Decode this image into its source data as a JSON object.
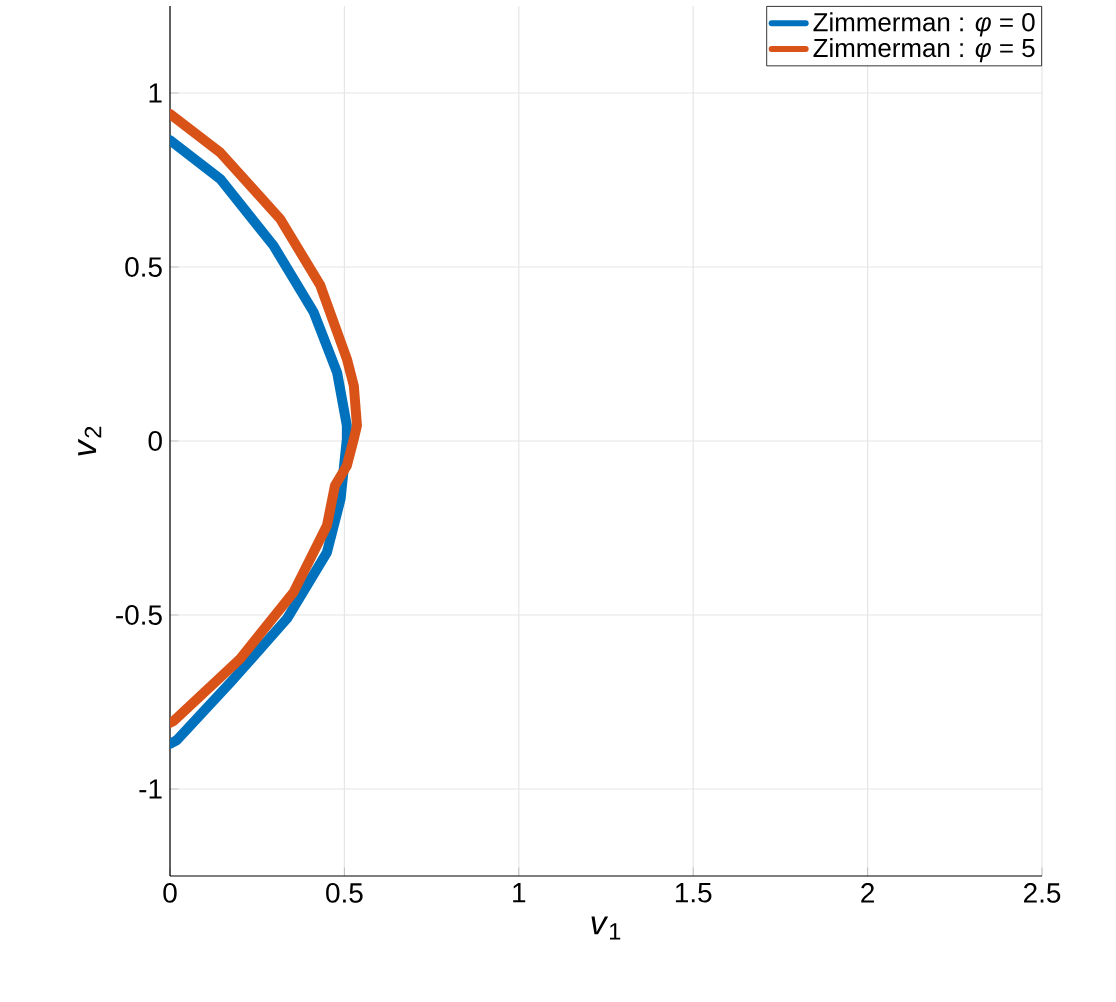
{
  "chart_data": {
    "type": "line",
    "xlabel": "*v*$_{1}$",
    "ylabel": "*v*$_{2}$",
    "xlim": [
      0,
      2.5
    ],
    "ylim": [
      -1.25,
      1.25
    ],
    "xticks": [
      0,
      0.5,
      1,
      1.5,
      2,
      2.5
    ],
    "yticks": [
      -1,
      -0.5,
      0,
      0.5,
      1
    ],
    "grid": true,
    "legend": "top right",
    "series": [
      {
        "name": "Zimmerman : *φ* = 0",
        "color": "#0072bd",
        "x": [
          0,
          0.144,
          0.297,
          0.412,
          0.479,
          0.507,
          0.507,
          0.489,
          0.45,
          0.335,
          0.182,
          0.019,
          0
        ],
        "values": [
          0.864,
          0.753,
          0.561,
          0.37,
          0.197,
          0.044,
          0.006,
          -0.167,
          -0.32,
          -0.511,
          -0.684,
          -0.86,
          -0.87
        ]
      },
      {
        "name": "Zimmerman : *φ* = 5",
        "color": "#d95319",
        "x": [
          0,
          0.144,
          0.316,
          0.431,
          0.507,
          0.527,
          0.536,
          0.527,
          0.507,
          0.473,
          0.45,
          0.354,
          0.201,
          0.01,
          0
        ],
        "values": [
          0.94,
          0.829,
          0.638,
          0.447,
          0.236,
          0.159,
          0.044,
          0.006,
          -0.071,
          -0.128,
          -0.243,
          -0.435,
          -0.626,
          -0.805,
          -0.81
        ]
      }
    ]
  }
}
